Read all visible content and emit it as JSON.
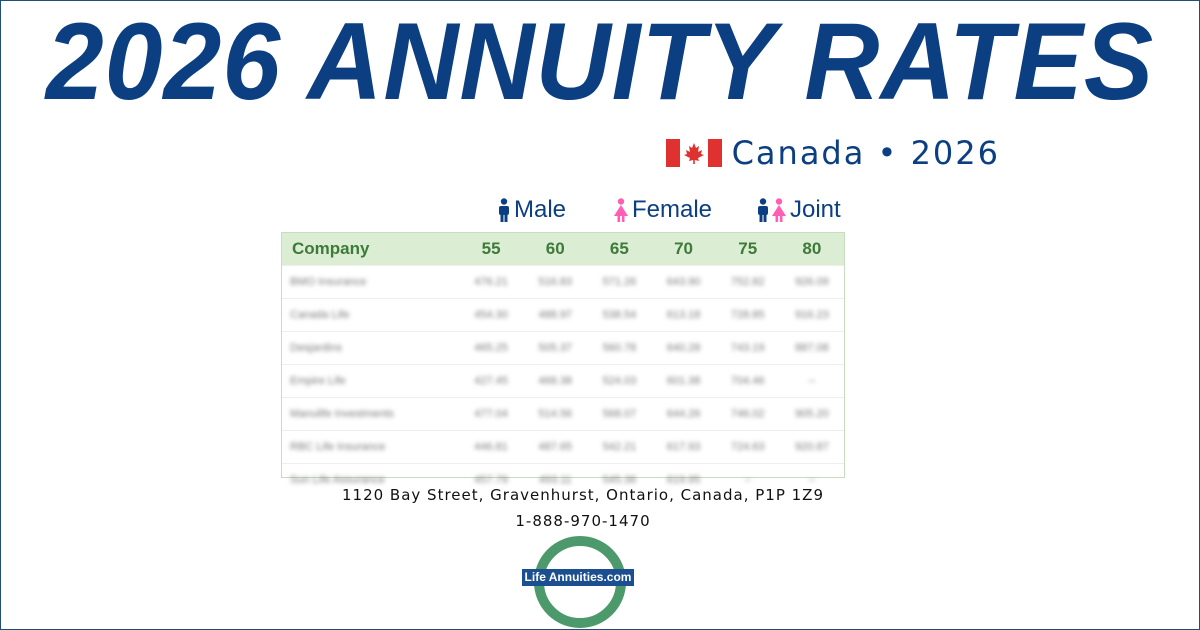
{
  "title": "2026 ANNUITY RATES",
  "subtitle": "Canada • 2026",
  "flag_colors": {
    "red": "#e03131",
    "white": "#ffffff"
  },
  "genders": {
    "male": "Male",
    "female": "Female",
    "joint": "Joint",
    "male_color": "#0b3f82",
    "female_color": "#ff5fb3"
  },
  "table": {
    "headers": [
      "Company",
      "55",
      "60",
      "65",
      "70",
      "75",
      "80"
    ],
    "rows": [
      [
        "BMO Insurance",
        "476.21",
        "516.83",
        "571.26",
        "643.90",
        "752.82",
        "926.09"
      ],
      [
        "Canada Life",
        "454.30",
        "488.97",
        "538.54",
        "613.18",
        "728.85",
        "916.23"
      ],
      [
        "Desjardins",
        "465.25",
        "505.37",
        "560.78",
        "640.28",
        "743.19",
        "887.08"
      ],
      [
        "Empire Life",
        "427.45",
        "468.38",
        "524.03",
        "601.38",
        "704.46",
        "–"
      ],
      [
        "Manulife Investments",
        "477.04",
        "514.56",
        "568.07",
        "644.26",
        "746.02",
        "905.20"
      ],
      [
        "RBC Life Insurance",
        "446.81",
        "487.65",
        "542.21",
        "617.93",
        "724.63",
        "920.87"
      ],
      [
        "Sun Life Assurance",
        "457.79",
        "493.11",
        "545.36",
        "619.95",
        "–",
        "–"
      ]
    ]
  },
  "address": "1120 Bay Street, Gravenhurst, Ontario, Canada, P1P 1Z9",
  "phone": "1-888-970-1470",
  "logo": {
    "text": "Life Annuities.com",
    "ring_color": "#4c9a6b",
    "label_color": "#1c4f8f"
  }
}
